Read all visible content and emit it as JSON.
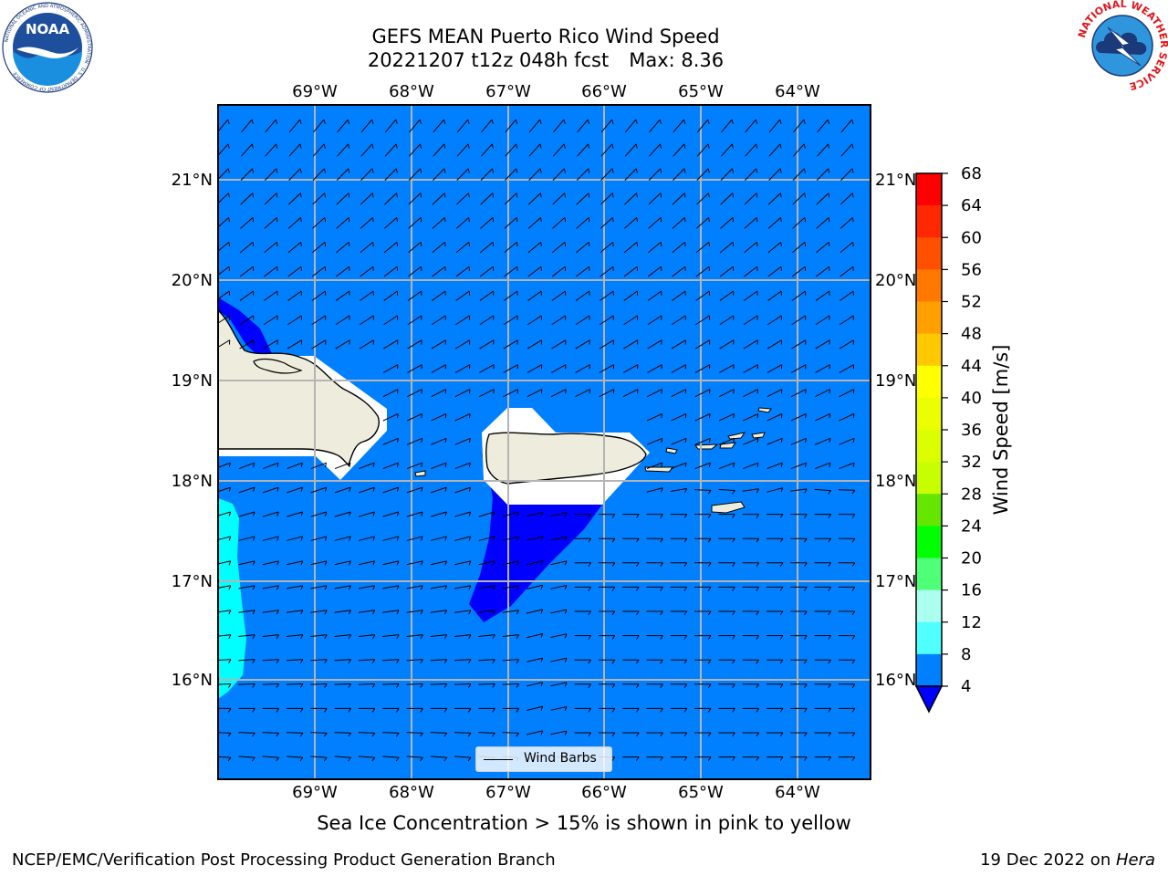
{
  "title": {
    "line1": "GEFS MEAN Puerto Rico Wind Speed",
    "line2_left": "20221207 t12z 048h fcst",
    "line2_right": "Max: 8.36"
  },
  "logos": {
    "left": {
      "icon": "noaa-logo-icon",
      "text": "NOAA",
      "ring_text": "NATIONAL OCEANIC AND ATMOSPHERIC ADMINISTRATION · U.S. DEPARTMENT OF COMMERCE"
    },
    "right": {
      "icon": "nws-logo-icon",
      "ring_text": "NATIONAL WEATHER SERVICE"
    }
  },
  "map": {
    "ocean_color": "#0080ff",
    "land_color": "#eeeddd",
    "lon_labels": [
      "69°W",
      "68°W",
      "67°W",
      "66°W",
      "65°W",
      "64°W"
    ],
    "lat_labels": [
      "21°N",
      "20°N",
      "19°N",
      "18°N",
      "17°N",
      "16°N"
    ],
    "legend_label": "Wind Barbs"
  },
  "colorbar": {
    "title": "Wind Speed [m/s]",
    "ticks": [
      "68",
      "64",
      "60",
      "56",
      "52",
      "48",
      "44",
      "40",
      "36",
      "32",
      "28",
      "24",
      "20",
      "16",
      "12",
      "8",
      "4"
    ],
    "colors": [
      "#ff0000",
      "#ff2800",
      "#ff5000",
      "#ff7800",
      "#ffa000",
      "#ffc800",
      "#ffff00",
      "#ecff00",
      "#dcff00",
      "#c8ff00",
      "#64e600",
      "#00ff00",
      "#50ff78",
      "#aaffee",
      "#50ffff",
      "#00ffff",
      "#0080ff"
    ],
    "under_color": "#0000ff"
  },
  "caption": "Sea Ice Concentration > 15% is shown in pink to yellow",
  "footer": {
    "left": "NCEP/EMC/Verification Post Processing Product Generation Branch",
    "right_date": "19 Dec 2022 on ",
    "right_host": "Hera"
  }
}
